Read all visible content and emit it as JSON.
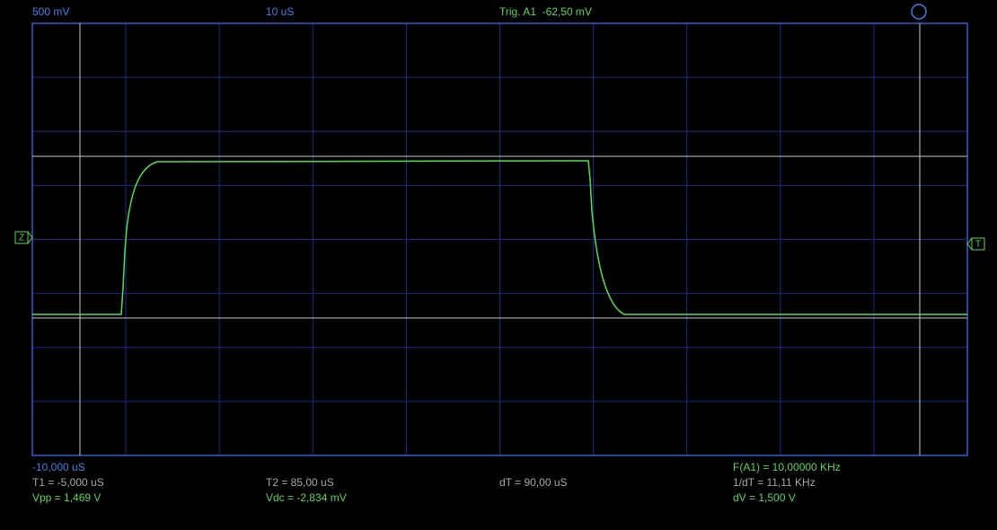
{
  "header": {
    "volts_per_div": "500 mV",
    "time_per_div": "10 uS",
    "trigger": "Trig. A1  -62,50 mV"
  },
  "markers": {
    "zero": "Z",
    "trigger": "T"
  },
  "footer": {
    "offset": "-10,000 uS",
    "frequency": "F(A1) = 10,00000 KHz",
    "t1": "T1 = -5,000 uS",
    "t2": "T2 = 85,00 uS",
    "dt": "dT = 90,00 uS",
    "inv_dt": "1/dT = 11,11 KHz",
    "vpp": "Vpp = 1,469 V",
    "vdc": "Vdc = -2,834 mV",
    "dv": "dV = 1,500 V"
  }
}
